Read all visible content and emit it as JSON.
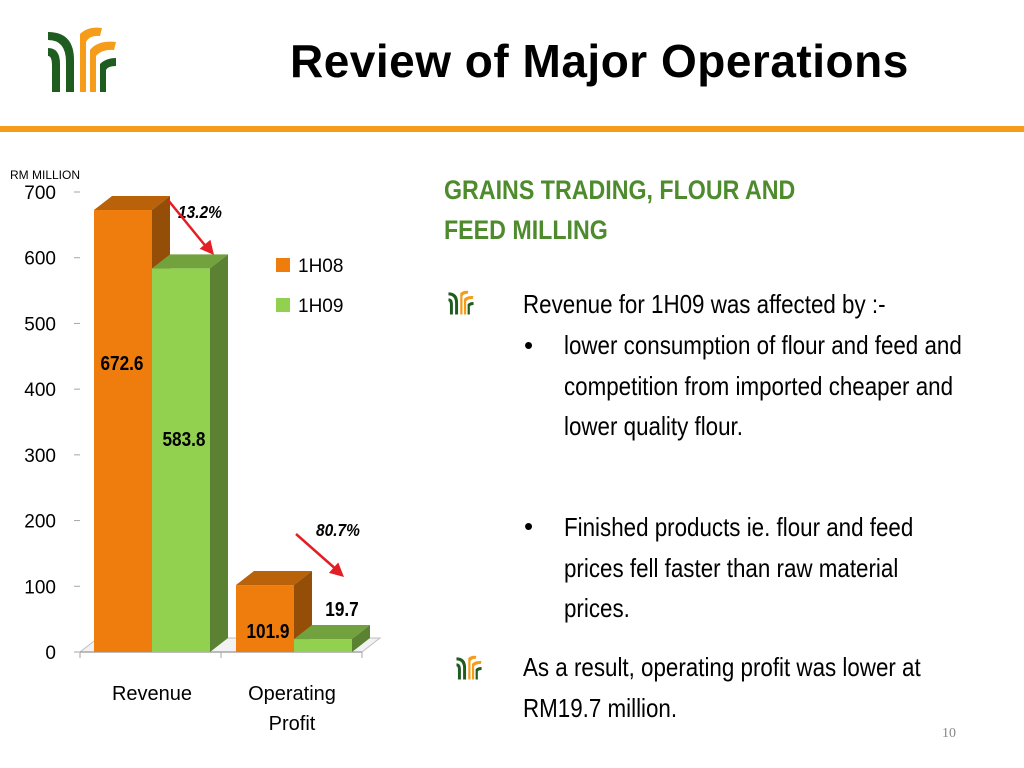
{
  "slide": {
    "title": "Review of Major Operations",
    "page_number": "10"
  },
  "colors": {
    "accent_orange": "#f59c1a",
    "series_1h08": "#ef7d0d",
    "series_1h09": "#92d050",
    "heading_green": "#4e8b2c",
    "logo_green": "#1f5c20",
    "arrow_red": "#e31e24"
  },
  "logo": {
    "icon": "company-logo-icon"
  },
  "section": {
    "heading": "GRAINS TRADING, FLOUR AND FEED MILLING",
    "bullets": [
      {
        "text": "Revenue for 1H09 was affected by :-",
        "sub_bullets": [
          "lower consumption of flour and feed and competition from imported cheaper and lower quality flour.",
          "Finished products ie. flour and feed prices fell faster than raw material prices."
        ]
      },
      {
        "text": "As a result, operating profit was lower at RM19.7 million.",
        "sub_bullets": []
      }
    ],
    "bullet_icon": "company-logo-icon",
    "sub_bullet_glyph": "•"
  },
  "chart_data": {
    "type": "bar",
    "ylabel": "RM MILLION",
    "ylim": [
      0,
      700
    ],
    "yticks": [
      0,
      100,
      200,
      300,
      400,
      500,
      600,
      700
    ],
    "categories": [
      "Revenue",
      "Operating Profit"
    ],
    "series": [
      {
        "name": "1H08",
        "values": [
          672.6,
          101.9
        ],
        "labels": [
          "672.6",
          "101.9"
        ]
      },
      {
        "name": "1H09",
        "values": [
          583.8,
          19.7
        ],
        "labels": [
          "583.8",
          "19.7"
        ]
      }
    ],
    "annotations": [
      {
        "text": "13.2%",
        "category": "Revenue"
      },
      {
        "text": "80.7%",
        "category": "Operating Profit"
      }
    ],
    "legend_position": "right",
    "grid": false
  }
}
